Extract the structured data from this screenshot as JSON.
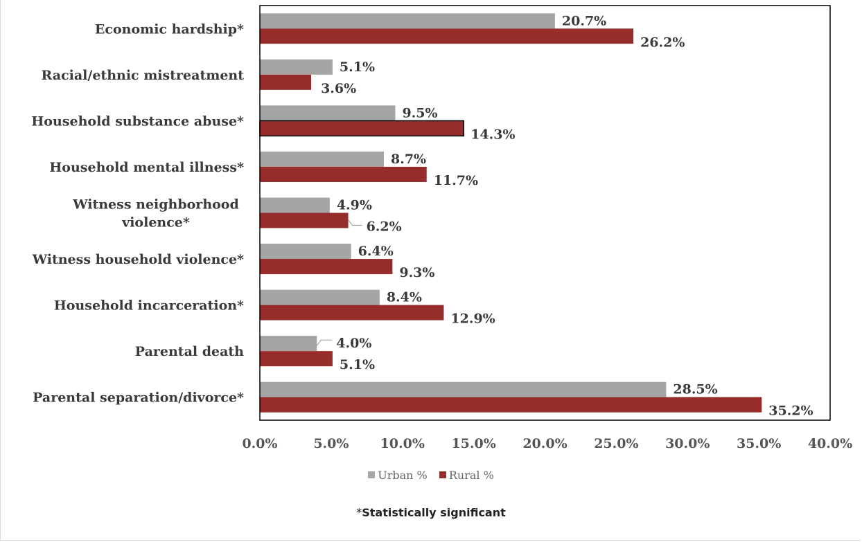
{
  "chart_data": {
    "type": "bar",
    "orientation": "horizontal",
    "categories": [
      "Economic hardship*",
      "Racial/ethnic mistreatment",
      "Household substance abuse*",
      "Household mental illness*",
      "Witness neighborhood violence*",
      "Witness household violence*",
      "Household incarceration*",
      "Parental death",
      "Parental separation/divorce*"
    ],
    "category_lines": [
      [
        "Economic hardship*"
      ],
      [
        "Racial/ethnic mistreatment"
      ],
      [
        "Household substance abuse*"
      ],
      [
        "Household mental illness*"
      ],
      [
        "Witness neighborhood",
        "violence*"
      ],
      [
        "Witness household violence*"
      ],
      [
        "Household incarceration*"
      ],
      [
        "Parental death"
      ],
      [
        "Parental separation/divorce*"
      ]
    ],
    "series": [
      {
        "name": "Urban %",
        "color": "#a5a5a5",
        "values": [
          20.7,
          5.1,
          9.5,
          8.7,
          4.9,
          6.4,
          8.4,
          4.0,
          28.5
        ],
        "labels": [
          "20.7%",
          "5.1%",
          "9.5%",
          "8.7%",
          "4.9%",
          "6.4%",
          "8.4%",
          "4.0%",
          "28.5%"
        ]
      },
      {
        "name": "Rural %",
        "color": "#962d2a",
        "values": [
          26.2,
          3.6,
          14.3,
          11.7,
          6.2,
          9.3,
          12.9,
          5.1,
          35.2
        ],
        "labels": [
          "26.2%",
          "3.6%",
          "14.3%",
          "11.7%",
          "6.2%",
          "9.3%",
          "12.9%",
          "5.1%",
          "35.2%"
        ]
      }
    ],
    "xlim": [
      0,
      40
    ],
    "x_ticks": [
      "0.0%",
      "5.0%",
      "10.0%",
      "15.0%",
      "20.0%",
      "25.0%",
      "30.0%",
      "35.0%",
      "40.0%"
    ],
    "title": "",
    "xlabel": "",
    "ylabel": "",
    "legend_position": "bottom",
    "grid": false
  },
  "legend": {
    "urban_label": "Urban %",
    "rural_label": "Rural %",
    "urban_color": "#a5a5a5",
    "rural_color": "#962d2a"
  },
  "footnote": {
    "star": "*",
    "text": "Statistically significant"
  }
}
